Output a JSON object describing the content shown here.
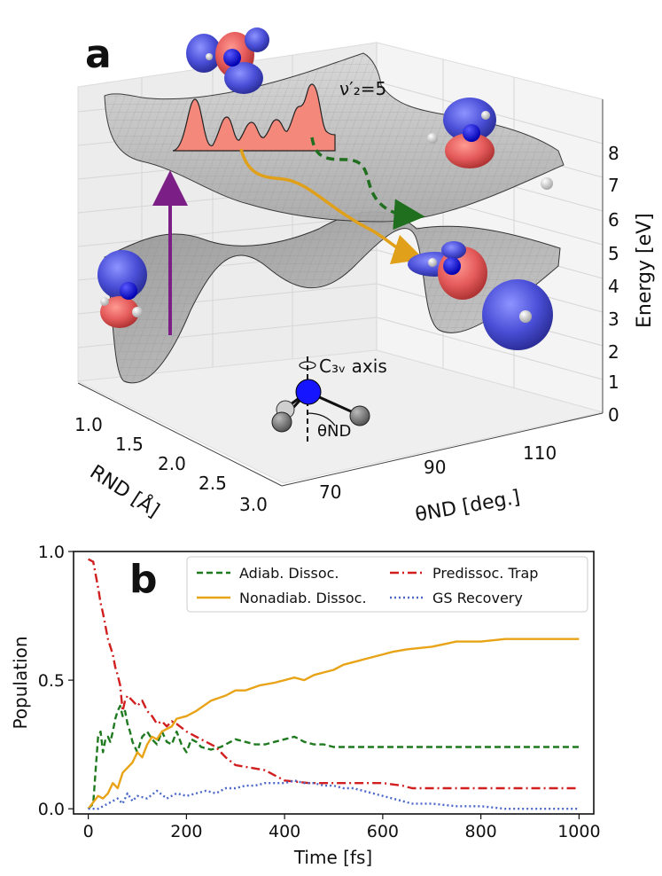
{
  "panel_a": {
    "label": "a",
    "vib_label": "ν′₂=5",
    "c3v_label": "C₃ᵥ axis",
    "theta_label": "θND",
    "axes": {
      "r_label": "RND [Å]",
      "theta_axis_label": "θND [deg.]",
      "energy_label": "Energy [eV]",
      "r_ticks": [
        "1.0",
        "1.5",
        "2.0",
        "2.5",
        "3.0"
      ],
      "theta_ticks": [
        "70",
        "90",
        "110"
      ],
      "energy_ticks": [
        "0",
        "1",
        "2",
        "3",
        "4",
        "5",
        "6",
        "7",
        "8"
      ]
    },
    "colors": {
      "excitation_arrow": "#7b1e86",
      "nonadiabatic_path": "#e0a01a",
      "adiabatic_path": "#1f6f1f",
      "wavepacket": "#f4887a",
      "orbital_negative": "#4a4fd8",
      "orbital_positive": "#e45a5a"
    }
  },
  "panel_b": {
    "label": "b",
    "chart_data": {
      "type": "line",
      "xlabel": "Time [fs]",
      "ylabel": "Population",
      "xlim": [
        -30,
        1030
      ],
      "ylim": [
        -0.02,
        1.0
      ],
      "xticks": [
        0,
        200,
        400,
        600,
        800,
        1000
      ],
      "yticks": [
        0.0,
        0.5,
        1.0
      ],
      "ytick_labels": [
        "0.0",
        "0.5",
        "1.0"
      ],
      "legend_position": "top-right",
      "grid": false,
      "series": [
        {
          "name": "Adiab. Dissoc.",
          "color": "#1f7a1f",
          "dash": "7,4",
          "x": [
            0,
            10,
            15,
            20,
            25,
            30,
            35,
            40,
            45,
            50,
            55,
            60,
            65,
            70,
            75,
            80,
            85,
            90,
            100,
            110,
            120,
            130,
            140,
            150,
            160,
            170,
            180,
            190,
            200,
            210,
            220,
            230,
            250,
            270,
            290,
            300,
            320,
            340,
            360,
            380,
            400,
            420,
            440,
            460,
            480,
            500,
            550,
            600,
            650,
            700,
            800,
            900,
            1000
          ],
          "y": [
            0.0,
            0.02,
            0.15,
            0.28,
            0.3,
            0.22,
            0.27,
            0.28,
            0.26,
            0.3,
            0.35,
            0.38,
            0.4,
            0.36,
            0.38,
            0.33,
            0.3,
            0.26,
            0.22,
            0.28,
            0.3,
            0.27,
            0.25,
            0.3,
            0.26,
            0.25,
            0.3,
            0.25,
            0.22,
            0.27,
            0.26,
            0.24,
            0.23,
            0.24,
            0.26,
            0.27,
            0.26,
            0.25,
            0.25,
            0.26,
            0.27,
            0.28,
            0.26,
            0.25,
            0.25,
            0.24,
            0.24,
            0.24,
            0.24,
            0.24,
            0.24,
            0.24,
            0.24
          ]
        },
        {
          "name": "Nonadiab. Dissoc.",
          "color": "#e8a317",
          "dash": "",
          "x": [
            0,
            20,
            30,
            40,
            50,
            60,
            70,
            80,
            90,
            100,
            110,
            120,
            130,
            140,
            150,
            160,
            170,
            180,
            200,
            220,
            250,
            280,
            300,
            320,
            350,
            380,
            400,
            420,
            440,
            460,
            480,
            500,
            520,
            540,
            560,
            580,
            600,
            620,
            650,
            700,
            750,
            800,
            850,
            900,
            950,
            1000
          ],
          "y": [
            0.0,
            0.05,
            0.04,
            0.06,
            0.1,
            0.08,
            0.14,
            0.16,
            0.18,
            0.22,
            0.2,
            0.25,
            0.28,
            0.27,
            0.3,
            0.31,
            0.32,
            0.35,
            0.36,
            0.38,
            0.42,
            0.44,
            0.46,
            0.46,
            0.48,
            0.49,
            0.5,
            0.51,
            0.5,
            0.52,
            0.53,
            0.54,
            0.56,
            0.57,
            0.58,
            0.59,
            0.6,
            0.61,
            0.62,
            0.63,
            0.65,
            0.65,
            0.66,
            0.66,
            0.66,
            0.66
          ]
        },
        {
          "name": "Predissoc. Trap",
          "color": "#d11f1f",
          "dash": "10,4,2,4",
          "x": [
            0,
            10,
            20,
            25,
            30,
            40,
            50,
            55,
            60,
            65,
            70,
            75,
            80,
            90,
            100,
            110,
            120,
            130,
            140,
            150,
            160,
            170,
            180,
            200,
            220,
            240,
            260,
            280,
            300,
            330,
            360,
            400,
            450,
            500,
            550,
            600,
            640,
            660,
            700,
            800,
            900,
            1000
          ],
          "y": [
            0.97,
            0.96,
            0.86,
            0.8,
            0.76,
            0.66,
            0.6,
            0.55,
            0.52,
            0.48,
            0.38,
            0.42,
            0.44,
            0.42,
            0.4,
            0.42,
            0.38,
            0.36,
            0.33,
            0.34,
            0.32,
            0.34,
            0.33,
            0.3,
            0.28,
            0.26,
            0.24,
            0.2,
            0.17,
            0.16,
            0.15,
            0.11,
            0.1,
            0.1,
            0.1,
            0.1,
            0.09,
            0.08,
            0.08,
            0.08,
            0.08,
            0.08
          ]
        },
        {
          "name": "GS Recovery",
          "color": "#4b68c8",
          "dash": "2,3",
          "x": [
            0,
            20,
            40,
            60,
            70,
            80,
            90,
            100,
            120,
            140,
            160,
            180,
            200,
            220,
            240,
            260,
            280,
            300,
            320,
            340,
            360,
            380,
            400,
            420,
            440,
            460,
            480,
            500,
            520,
            540,
            560,
            580,
            600,
            620,
            640,
            660,
            700,
            750,
            800,
            850,
            900,
            950,
            1000
          ],
          "y": [
            0.0,
            0.0,
            0.02,
            0.04,
            0.02,
            0.06,
            0.03,
            0.05,
            0.04,
            0.07,
            0.04,
            0.06,
            0.05,
            0.06,
            0.07,
            0.06,
            0.08,
            0.08,
            0.09,
            0.09,
            0.1,
            0.1,
            0.1,
            0.11,
            0.1,
            0.1,
            0.09,
            0.09,
            0.08,
            0.08,
            0.07,
            0.06,
            0.05,
            0.04,
            0.03,
            0.02,
            0.02,
            0.01,
            0.01,
            0.0,
            0.0,
            0.0,
            0.0
          ]
        }
      ]
    }
  }
}
